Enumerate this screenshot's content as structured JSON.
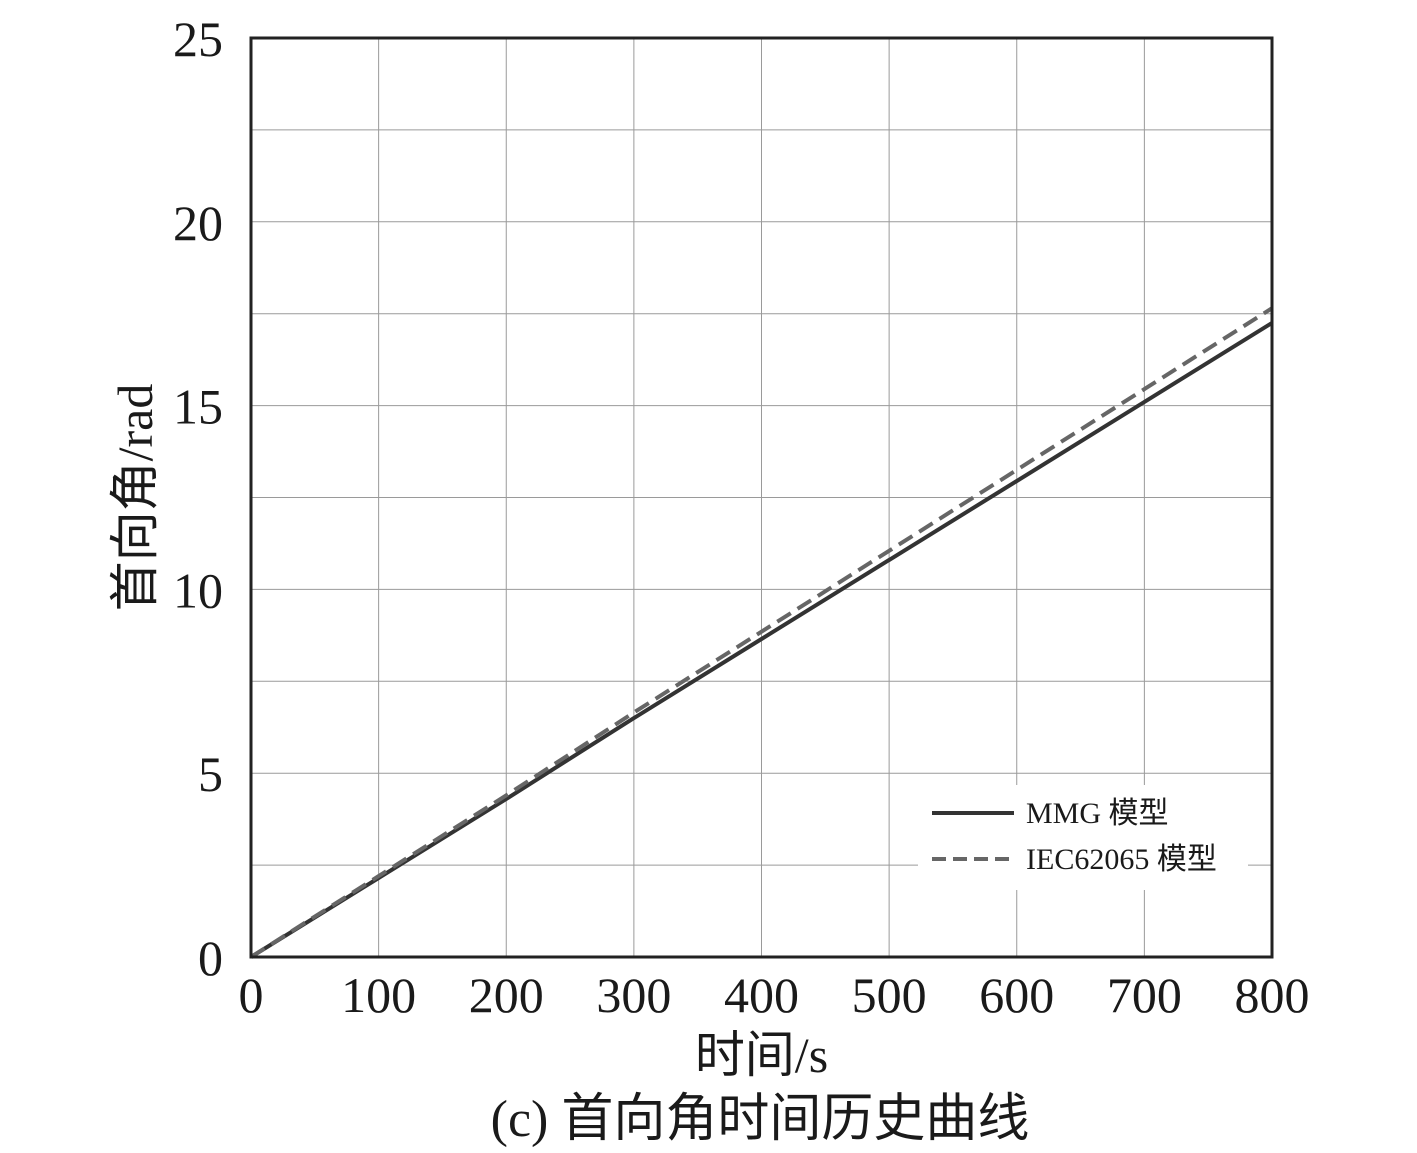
{
  "chart_data": {
    "type": "line",
    "xlabel": "时间/s",
    "ylabel": "首向角/rad",
    "caption": "(c) 首向角时间历史曲线",
    "xlim": [
      0,
      800
    ],
    "ylim": [
      0,
      25
    ],
    "x_ticks": [
      "0",
      "100",
      "200",
      "300",
      "400",
      "500",
      "600",
      "700",
      "800"
    ],
    "y_ticks": [
      "0",
      "5",
      "10",
      "15",
      "20",
      "25"
    ],
    "x_tick_values": [
      0,
      100,
      200,
      300,
      400,
      500,
      600,
      700,
      800
    ],
    "y_tick_values": [
      0,
      5,
      10,
      15,
      20,
      25
    ],
    "y_grid_values": [
      0,
      2.5,
      5,
      7.5,
      10,
      12.5,
      15,
      17.5,
      20,
      22.5,
      25
    ],
    "grid": true,
    "legend_position": "bottom-right",
    "series": [
      {
        "name": "MMG 模型",
        "style": "solid",
        "color": "#333333",
        "x": [
          0,
          100,
          200,
          300,
          400,
          500,
          600,
          700,
          800
        ],
        "y": [
          0,
          2.15,
          4.3,
          6.5,
          8.65,
          10.8,
          12.95,
          15.1,
          17.25
        ]
      },
      {
        "name": "IEC62065 模型",
        "style": "dashed",
        "color": "#666666",
        "x": [
          0,
          100,
          200,
          300,
          400,
          500,
          600,
          700,
          800
        ],
        "y": [
          0,
          2.2,
          4.4,
          6.65,
          8.85,
          11.05,
          13.25,
          15.45,
          17.65
        ]
      }
    ]
  }
}
